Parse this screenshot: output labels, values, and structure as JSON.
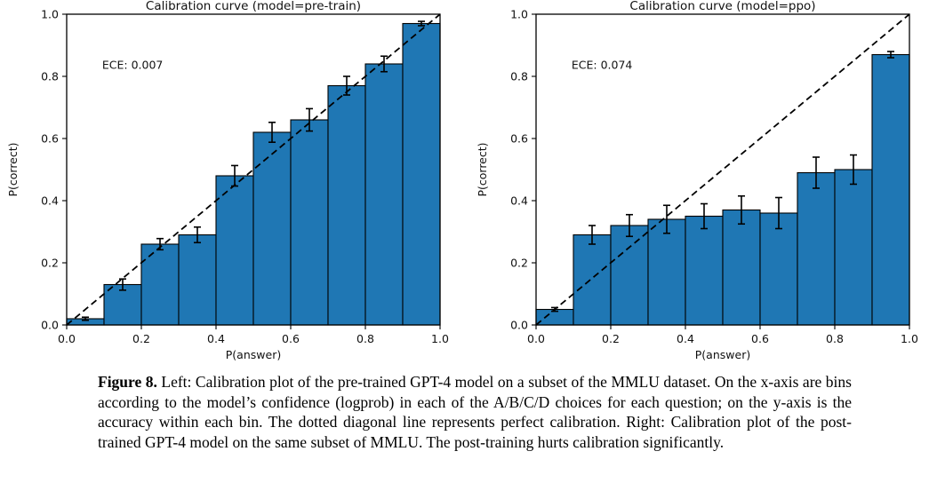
{
  "figure": {
    "caption_label": "Figure 8.",
    "caption_text": " Left: Calibration plot of the pre-trained GPT-4 model on a subset of the MMLU dataset. On the x-axis are bins according to the model’s confidence (logprob) in each of the A/B/C/D choices for each question; on the y-axis is the accuracy within each bin. The dotted diagonal line represents perfect calibration. Right: Calibration plot of the post-trained GPT-4 model on the same subset of MMLU. The post-training hurts calibration significantly."
  },
  "colors": {
    "bar_fill": "#1f77b4",
    "bar_edge": "#000000",
    "diagonal_line": "#000000",
    "axis": "#000000",
    "text": "#111111"
  },
  "chart_data": [
    {
      "type": "bar",
      "title": "Calibration curve (model=pre-train)",
      "annotation": "ECE: 0.007",
      "xlabel": "P(answer)",
      "ylabel": "P(correct)",
      "xlim": [
        0.0,
        1.0
      ],
      "ylim": [
        0.0,
        1.0
      ],
      "xticks": [
        "0.0",
        "0.2",
        "0.4",
        "0.6",
        "0.8",
        "1.0"
      ],
      "yticks": [
        "0.0",
        "0.2",
        "0.4",
        "0.6",
        "0.8",
        "1.0"
      ],
      "grid": false,
      "legend": false,
      "diagonal": true,
      "bin_width": 0.1,
      "bin_starts": [
        0.0,
        0.1,
        0.2,
        0.3,
        0.4,
        0.5,
        0.6,
        0.7,
        0.8,
        0.9
      ],
      "values": [
        0.02,
        0.13,
        0.26,
        0.29,
        0.48,
        0.62,
        0.66,
        0.77,
        0.84,
        0.97
      ],
      "errors": [
        0.005,
        0.018,
        0.018,
        0.025,
        0.033,
        0.032,
        0.036,
        0.03,
        0.025,
        0.007
      ]
    },
    {
      "type": "bar",
      "title": "Calibration curve (model=ppo)",
      "annotation": "ECE: 0.074",
      "xlabel": "P(answer)",
      "ylabel": "P(correct)",
      "xlim": [
        0.0,
        1.0
      ],
      "ylim": [
        0.0,
        1.0
      ],
      "xticks": [
        "0.0",
        "0.2",
        "0.4",
        "0.6",
        "0.8",
        "1.0"
      ],
      "yticks": [
        "0.0",
        "0.2",
        "0.4",
        "0.6",
        "0.8",
        "1.0"
      ],
      "grid": false,
      "legend": false,
      "diagonal": true,
      "bin_width": 0.1,
      "bin_starts": [
        0.0,
        0.1,
        0.2,
        0.3,
        0.4,
        0.5,
        0.6,
        0.7,
        0.8,
        0.9
      ],
      "values": [
        0.05,
        0.29,
        0.32,
        0.34,
        0.35,
        0.37,
        0.36,
        0.49,
        0.5,
        0.87
      ],
      "errors": [
        0.006,
        0.03,
        0.035,
        0.045,
        0.04,
        0.045,
        0.05,
        0.05,
        0.047,
        0.01
      ]
    }
  ]
}
